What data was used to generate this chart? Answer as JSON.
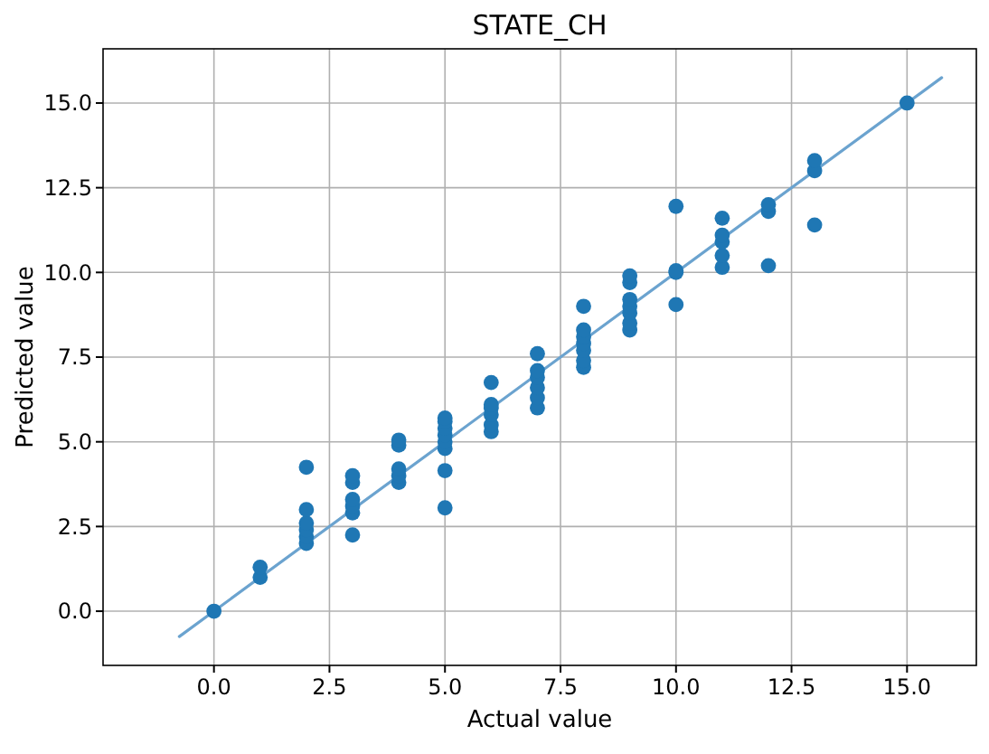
{
  "chart_data": {
    "type": "scatter",
    "title": "STATE_CH",
    "xlabel": "Actual value",
    "ylabel": "Predicted value",
    "xlim": [
      -2.4,
      16.5
    ],
    "ylim": [
      -1.6,
      16.6
    ],
    "xticks": [
      {
        "value": 0,
        "label": "0.0"
      },
      {
        "value": 2.5,
        "label": "2.5"
      },
      {
        "value": 5,
        "label": "5.0"
      },
      {
        "value": 7.5,
        "label": "7.5"
      },
      {
        "value": 10,
        "label": "10.0"
      },
      {
        "value": 12.5,
        "label": "12.5"
      },
      {
        "value": 15,
        "label": "15.0"
      }
    ],
    "yticks": [
      {
        "value": 0,
        "label": "0.0"
      },
      {
        "value": 2.5,
        "label": "2.5"
      },
      {
        "value": 5,
        "label": "5.0"
      },
      {
        "value": 7.5,
        "label": "7.5"
      },
      {
        "value": 10,
        "label": "10.0"
      },
      {
        "value": 12.5,
        "label": "12.5"
      },
      {
        "value": 15,
        "label": "15.0"
      }
    ],
    "grid": true,
    "marker": "circle",
    "series": [
      {
        "type": "line",
        "marker": "none",
        "color": "#6ba3cf",
        "x": [
          -0.75,
          15.75
        ],
        "values": [
          -0.75,
          15.75
        ]
      },
      {
        "color": "#1f77b4",
        "x": [
          0,
          1,
          1,
          2,
          2,
          2,
          2,
          2,
          2,
          3,
          3,
          3,
          3,
          3,
          3,
          4,
          4,
          4,
          4,
          4,
          5,
          5,
          5,
          5,
          5,
          5,
          5,
          5,
          6,
          6,
          6,
          6,
          6,
          6,
          7,
          7,
          7,
          7,
          7,
          7,
          8,
          8,
          8,
          8,
          8,
          8,
          8,
          9,
          9,
          9,
          9,
          9,
          9,
          9,
          10,
          10,
          10,
          10,
          11,
          11,
          11,
          11,
          11,
          12,
          12,
          12,
          13,
          13,
          13,
          15
        ],
        "values": [
          0,
          1.0,
          1.3,
          2.0,
          2.2,
          2.4,
          2.6,
          3.0,
          4.25,
          2.25,
          2.9,
          3.1,
          3.3,
          3.8,
          4.0,
          3.8,
          4.0,
          4.2,
          4.9,
          5.05,
          3.05,
          4.15,
          4.8,
          5.0,
          5.2,
          5.4,
          5.6,
          5.7,
          5.3,
          5.5,
          5.8,
          6.0,
          6.1,
          6.75,
          6.0,
          6.3,
          6.6,
          6.9,
          7.1,
          7.6,
          7.2,
          7.4,
          7.7,
          7.9,
          8.1,
          8.3,
          9.0,
          8.3,
          8.5,
          8.8,
          9.0,
          9.2,
          9.7,
          9.9,
          9.05,
          10.0,
          10.05,
          11.95,
          10.15,
          10.5,
          10.9,
          11.1,
          11.6,
          10.2,
          11.8,
          12.0,
          11.4,
          13.0,
          13.3,
          15.0
        ]
      }
    ]
  }
}
